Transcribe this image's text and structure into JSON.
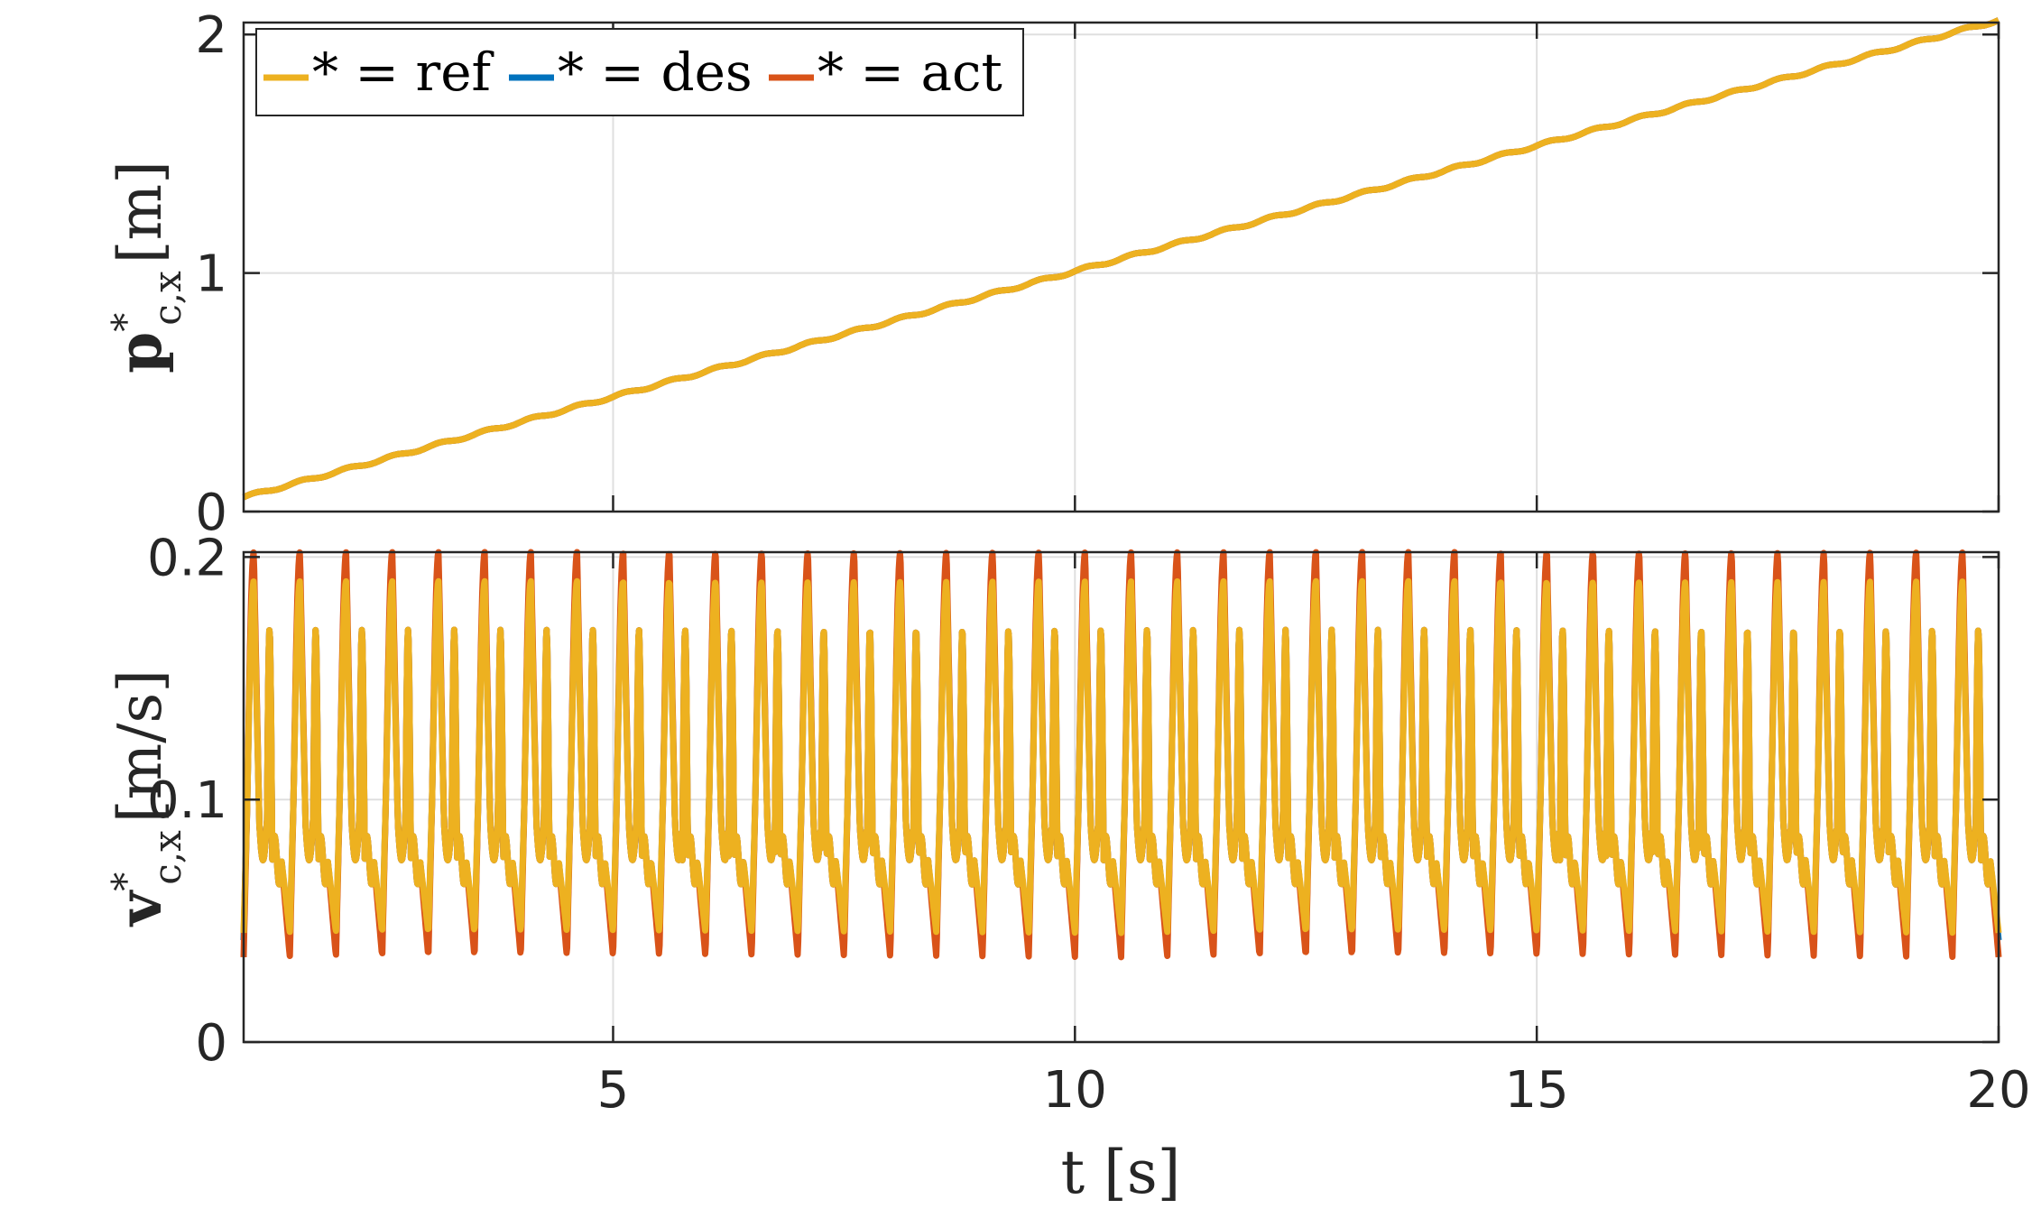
{
  "chart_data": [
    {
      "type": "line",
      "ylabel": "p*c,x [m]",
      "ylabel_main": "p",
      "ylabel_sup": "*",
      "ylabel_sub": "c,x",
      "ylabel_unit": "[m]",
      "xlim": [
        1,
        20
      ],
      "ylim": [
        0,
        2.05
      ],
      "yticks": [
        0,
        1,
        2
      ],
      "xticks": [
        5,
        10,
        15,
        20
      ],
      "grid": true,
      "legend": {
        "placement": "top-left",
        "orientation": "horizontal"
      },
      "series": [
        {
          "name": "* = ref",
          "color": "#EDB120",
          "x": [
            1,
            2,
            3,
            4,
            5,
            6,
            7,
            8,
            9,
            10,
            11,
            12,
            13,
            14,
            15,
            16,
            17,
            18,
            19,
            20
          ],
          "values": [
            0.06,
            0.16,
            0.27,
            0.37,
            0.48,
            0.59,
            0.69,
            0.8,
            0.91,
            1.01,
            1.11,
            1.22,
            1.33,
            1.43,
            1.53,
            1.64,
            1.75,
            1.85,
            1.96,
            2.06
          ]
        },
        {
          "name": "* = des",
          "color": "#0072BD",
          "x": [
            1,
            2,
            3,
            4,
            5,
            6,
            7,
            8,
            9,
            10,
            11,
            12,
            13,
            14,
            15,
            16,
            17,
            18,
            19,
            20
          ],
          "values": [
            0.06,
            0.16,
            0.27,
            0.37,
            0.48,
            0.59,
            0.69,
            0.8,
            0.91,
            1.01,
            1.11,
            1.22,
            1.33,
            1.43,
            1.53,
            1.64,
            1.75,
            1.85,
            1.96,
            2.06
          ]
        },
        {
          "name": "* = act",
          "color": "#D95319",
          "x": [
            1,
            2,
            3,
            4,
            5,
            6,
            7,
            8,
            9,
            10,
            11,
            12,
            13,
            14,
            15,
            16,
            17,
            18,
            19,
            20
          ],
          "values": [
            0.06,
            0.16,
            0.27,
            0.37,
            0.48,
            0.59,
            0.69,
            0.8,
            0.91,
            1.01,
            1.11,
            1.22,
            1.33,
            1.43,
            1.53,
            1.64,
            1.75,
            1.85,
            1.96,
            2.06
          ]
        }
      ]
    },
    {
      "type": "line",
      "ylabel": "v*c,x [m/s]",
      "ylabel_main": "v",
      "ylabel_sup": "*",
      "ylabel_sub": "c,x",
      "ylabel_unit": "[m/s]",
      "xlabel": "t [s]",
      "xlim": [
        1,
        20
      ],
      "ylim": [
        0,
        0.202
      ],
      "yticks": [
        0,
        0.1,
        0.2
      ],
      "xticks": [
        5,
        10,
        15,
        20
      ],
      "xtick_labels": [
        "5",
        "10",
        "15",
        "20"
      ],
      "ytick_labels": [
        "0",
        "0.1",
        "0.2"
      ],
      "grid": true,
      "period": 0.5,
      "series": [
        {
          "name": "* = ref",
          "color": "#EDB120",
          "mean": 0.105,
          "peak": 0.19,
          "trough": 0.045
        },
        {
          "name": "* = des",
          "color": "#0072BD",
          "mean": 0.105,
          "peak": 0.195,
          "trough": 0.042
        },
        {
          "name": "* = act",
          "color": "#D95319",
          "mean": 0.105,
          "peak": 0.202,
          "trough": 0.035
        }
      ]
    }
  ],
  "top_yticks_labels": [
    "0",
    "1",
    "2"
  ]
}
